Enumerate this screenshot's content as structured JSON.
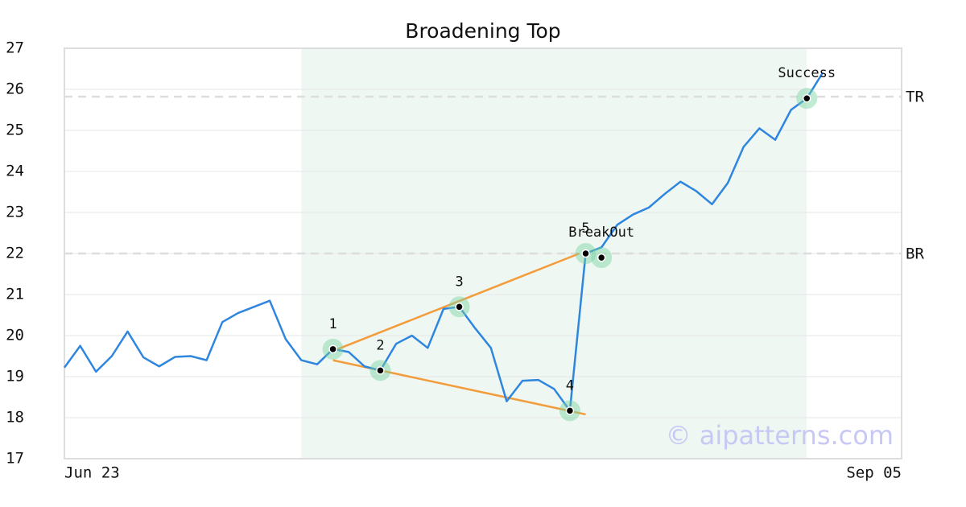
{
  "chart_data": {
    "type": "line",
    "title": "Broadening Top",
    "x": [
      0,
      1,
      2,
      3,
      4,
      5,
      6,
      7,
      8,
      9,
      10,
      11,
      12,
      13,
      14,
      15,
      16,
      17,
      18,
      19,
      20,
      21,
      22,
      23,
      24,
      25,
      26,
      27,
      28,
      29,
      30,
      31,
      32,
      33,
      34,
      35,
      36,
      37,
      38,
      39,
      40,
      41,
      42,
      43,
      44,
      45,
      46,
      47,
      48
    ],
    "values": [
      19.22,
      19.75,
      19.12,
      19.5,
      20.1,
      19.47,
      19.25,
      19.48,
      19.5,
      19.4,
      20.33,
      20.55,
      20.7,
      20.85,
      19.92,
      19.4,
      19.3,
      19.67,
      19.6,
      19.25,
      19.15,
      19.8,
      20.0,
      19.7,
      20.65,
      20.7,
      20.18,
      19.7,
      18.4,
      18.9,
      18.92,
      18.7,
      18.17,
      22.0,
      22.15,
      22.7,
      22.95,
      23.12,
      23.45,
      23.75,
      23.52,
      23.2,
      23.72,
      24.6,
      25.05,
      24.77,
      25.5,
      25.78,
      26.4
    ],
    "color": "#2e86de",
    "xlim": [
      0,
      53
    ],
    "xticks": [
      {
        "value": 0,
        "label": "Jun 23"
      },
      {
        "value": 53,
        "label": "Sep 05"
      }
    ],
    "ylim": [
      17,
      27
    ],
    "yticks": [
      17,
      18,
      19,
      20,
      21,
      22,
      23,
      24,
      25,
      26,
      27
    ],
    "grid": true,
    "highlight_x": [
      15,
      47
    ],
    "highlight_color": "#eef7f2",
    "ref_lines": [
      {
        "value": 25.82,
        "label": "TR"
      },
      {
        "value": 22.0,
        "label": "BR"
      }
    ],
    "trend_lines": [
      {
        "x": [
          17.3,
          32.6
        ],
        "y": [
          19.67,
          22.0
        ]
      },
      {
        "x": [
          17,
          33
        ],
        "y": [
          19.4,
          18.08
        ]
      }
    ],
    "trend_color": "#f39c3c",
    "markers": [
      {
        "x": 17,
        "y": 19.67,
        "label": "1"
      },
      {
        "x": 20,
        "y": 19.15,
        "label": "2"
      },
      {
        "x": 25,
        "y": 20.7,
        "label": "3"
      },
      {
        "x": 32,
        "y": 18.17,
        "label": "4"
      },
      {
        "x": 33,
        "y": 22.0,
        "label": "5"
      },
      {
        "x": 34,
        "y": 21.9,
        "label": "BreakOut"
      },
      {
        "x": 47,
        "y": 25.78,
        "label": "Success"
      }
    ],
    "watermark": "© aipatterns.com"
  }
}
